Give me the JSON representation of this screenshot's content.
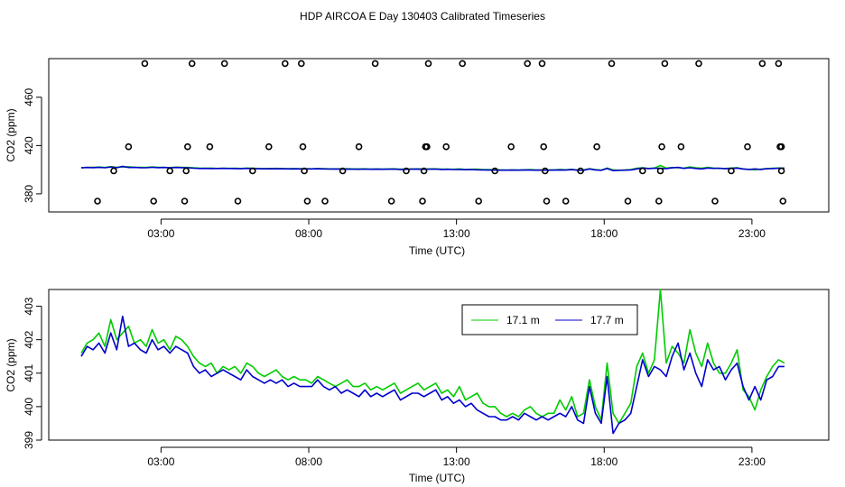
{
  "figure": {
    "title": "HDP AIRCOA E  Day 130403  Calibrated Timeseries"
  },
  "chart_data": [
    {
      "type": "scatter",
      "panel": "top",
      "title": "",
      "xlabel": "Time (UTC)",
      "ylabel": "CO2 (ppm)",
      "xlim": [
        -0.8,
        25.6
      ],
      "ylim": [
        365,
        492
      ],
      "x_ticks": [
        3,
        8,
        13,
        18,
        23
      ],
      "x_tick_labels": [
        "03:00",
        "08:00",
        "13:00",
        "18:00",
        "23:00"
      ],
      "y_ticks": [
        380,
        420,
        460
      ],
      "y_tick_labels": [
        "380",
        "420",
        "460"
      ],
      "grid": false,
      "series": [
        {
          "style": "points",
          "color": "#000000",
          "points": [
            [
              0.85,
              374
            ],
            [
              1.4,
              399
            ],
            [
              1.9,
              419
            ],
            [
              2.45,
              488
            ],
            [
              2.75,
              374
            ],
            [
              3.3,
              399
            ],
            [
              3.8,
              374
            ],
            [
              3.85,
              399
            ],
            [
              3.9,
              419
            ],
            [
              4.05,
              488
            ],
            [
              4.65,
              419
            ],
            [
              5.15,
              488
            ],
            [
              5.6,
              374
            ],
            [
              6.1,
              399
            ],
            [
              6.65,
              419
            ],
            [
              7.2,
              488
            ],
            [
              7.75,
              488
            ],
            [
              7.8,
              419
            ],
            [
              7.85,
              399
            ],
            [
              7.95,
              374
            ],
            [
              8.55,
              374
            ],
            [
              9.15,
              399
            ],
            [
              9.7,
              419
            ],
            [
              10.25,
              488
            ],
            [
              10.8,
              374
            ],
            [
              11.3,
              399
            ],
            [
              11.85,
              374
            ],
            [
              11.9,
              399
            ],
            [
              11.95,
              419
            ],
            [
              12.0,
              419
            ],
            [
              12.05,
              488
            ],
            [
              12.65,
              419
            ],
            [
              13.2,
              488
            ],
            [
              13.75,
              374
            ],
            [
              14.3,
              399
            ],
            [
              14.85,
              419
            ],
            [
              15.4,
              488
            ],
            [
              15.9,
              488
            ],
            [
              15.95,
              419
            ],
            [
              16.0,
              399
            ],
            [
              16.05,
              374
            ],
            [
              16.7,
              374
            ],
            [
              17.2,
              399
            ],
            [
              17.75,
              419
            ],
            [
              18.25,
              488
            ],
            [
              18.8,
              374
            ],
            [
              19.3,
              399
            ],
            [
              19.85,
              374
            ],
            [
              19.9,
              399
            ],
            [
              19.95,
              419
            ],
            [
              20.05,
              488
            ],
            [
              20.6,
              419
            ],
            [
              21.2,
              488
            ],
            [
              21.75,
              374
            ],
            [
              22.3,
              399
            ],
            [
              22.85,
              419
            ],
            [
              23.35,
              488
            ],
            [
              23.9,
              488
            ],
            [
              23.95,
              419
            ],
            [
              24.0,
              419
            ],
            [
              24.0,
              399
            ],
            [
              24.05,
              374
            ]
          ]
        },
        {
          "style": "line",
          "color": "#00cc00",
          "ref": "17.1 m"
        },
        {
          "style": "line",
          "color": "#0000cc",
          "ref": "17.7 m"
        }
      ]
    },
    {
      "type": "line",
      "panel": "bottom",
      "title": "",
      "xlabel": "Time (UTC)",
      "ylabel": "CO2 (ppm)",
      "xlim": [
        -0.8,
        25.6
      ],
      "ylim": [
        399.0,
        403.5
      ],
      "x_ticks": [
        3,
        8,
        13,
        18,
        23
      ],
      "x_tick_labels": [
        "03:00",
        "08:00",
        "13:00",
        "18:00",
        "23:00"
      ],
      "y_ticks": [
        399,
        400,
        401,
        402,
        403
      ],
      "y_tick_labels": [
        "399",
        "400",
        "401",
        "402",
        "403"
      ],
      "grid": false,
      "legend": {
        "position": "top-right"
      },
      "series": [
        {
          "name": "17.1 m",
          "color": "#00cc00",
          "x": [
            0.3,
            0.5,
            0.7,
            0.9,
            1.1,
            1.3,
            1.5,
            1.7,
            1.9,
            2.1,
            2.3,
            2.5,
            2.7,
            2.9,
            3.1,
            3.3,
            3.5,
            3.7,
            3.9,
            4.1,
            4.3,
            4.5,
            4.7,
            4.9,
            5.1,
            5.3,
            5.5,
            5.7,
            5.9,
            6.1,
            6.3,
            6.5,
            6.7,
            6.9,
            7.1,
            7.3,
            7.5,
            7.7,
            7.9,
            8.1,
            8.3,
            8.5,
            8.7,
            8.9,
            9.1,
            9.3,
            9.5,
            9.7,
            9.9,
            10.1,
            10.3,
            10.5,
            10.7,
            10.9,
            11.1,
            11.3,
            11.5,
            11.7,
            11.9,
            12.1,
            12.3,
            12.5,
            12.7,
            12.9,
            13.1,
            13.3,
            13.5,
            13.7,
            13.9,
            14.1,
            14.3,
            14.5,
            14.7,
            14.9,
            15.1,
            15.3,
            15.5,
            15.7,
            15.9,
            16.1,
            16.3,
            16.5,
            16.7,
            16.9,
            17.1,
            17.3,
            17.5,
            17.7,
            17.9,
            18.1,
            18.3,
            18.5,
            18.7,
            18.9,
            19.1,
            19.3,
            19.5,
            19.7,
            19.9,
            20.1,
            20.3,
            20.5,
            20.7,
            20.9,
            21.1,
            21.3,
            21.5,
            21.7,
            21.9,
            22.1,
            22.3,
            22.5,
            22.7,
            22.9,
            23.1,
            23.3,
            23.5,
            23.7,
            23.9,
            24.1
          ],
          "values": [
            401.6,
            401.9,
            402.0,
            402.2,
            401.8,
            402.6,
            402.0,
            402.2,
            402.4,
            401.9,
            402.0,
            401.8,
            402.3,
            401.9,
            402.0,
            401.7,
            402.1,
            402.0,
            401.8,
            401.5,
            401.3,
            401.2,
            401.3,
            401.0,
            401.2,
            401.1,
            401.2,
            401.0,
            401.3,
            401.2,
            401.0,
            400.9,
            401.0,
            401.1,
            400.9,
            400.8,
            400.9,
            400.8,
            400.8,
            400.7,
            400.9,
            400.8,
            400.7,
            400.6,
            400.7,
            400.8,
            400.6,
            400.6,
            400.7,
            400.5,
            400.6,
            400.5,
            400.6,
            400.7,
            400.4,
            400.5,
            400.6,
            400.7,
            400.5,
            400.6,
            400.7,
            400.4,
            400.5,
            400.3,
            400.6,
            400.2,
            400.3,
            400.4,
            400.1,
            400.0,
            400.0,
            399.8,
            399.7,
            399.8,
            399.7,
            399.9,
            400.0,
            399.8,
            399.7,
            399.8,
            399.8,
            400.2,
            399.9,
            400.3,
            399.7,
            399.8,
            400.8,
            400.0,
            399.6,
            401.3,
            399.8,
            399.5,
            399.8,
            400.1,
            401.2,
            401.6,
            401.0,
            401.4,
            403.5,
            401.3,
            401.8,
            401.6,
            401.3,
            402.3,
            401.6,
            401.2,
            401.9,
            401.3,
            401.0,
            401.0,
            401.3,
            401.7,
            400.5,
            400.3,
            399.9,
            400.5,
            400.9,
            401.2,
            401.4,
            401.3
          ]
        },
        {
          "name": "17.7 m",
          "color": "#0000cc",
          "x": [
            0.3,
            0.5,
            0.7,
            0.9,
            1.1,
            1.3,
            1.5,
            1.7,
            1.9,
            2.1,
            2.3,
            2.5,
            2.7,
            2.9,
            3.1,
            3.3,
            3.5,
            3.7,
            3.9,
            4.1,
            4.3,
            4.5,
            4.7,
            4.9,
            5.1,
            5.3,
            5.5,
            5.7,
            5.9,
            6.1,
            6.3,
            6.5,
            6.7,
            6.9,
            7.1,
            7.3,
            7.5,
            7.7,
            7.9,
            8.1,
            8.3,
            8.5,
            8.7,
            8.9,
            9.1,
            9.3,
            9.5,
            9.7,
            9.9,
            10.1,
            10.3,
            10.5,
            10.7,
            10.9,
            11.1,
            11.3,
            11.5,
            11.7,
            11.9,
            12.1,
            12.3,
            12.5,
            12.7,
            12.9,
            13.1,
            13.3,
            13.5,
            13.7,
            13.9,
            14.1,
            14.3,
            14.5,
            14.7,
            14.9,
            15.1,
            15.3,
            15.5,
            15.7,
            15.9,
            16.1,
            16.3,
            16.5,
            16.7,
            16.9,
            17.1,
            17.3,
            17.5,
            17.7,
            17.9,
            18.1,
            18.3,
            18.5,
            18.7,
            18.9,
            19.1,
            19.3,
            19.5,
            19.7,
            19.9,
            20.1,
            20.3,
            20.5,
            20.7,
            20.9,
            21.1,
            21.3,
            21.5,
            21.7,
            21.9,
            22.1,
            22.3,
            22.5,
            22.7,
            22.9,
            23.1,
            23.3,
            23.5,
            23.7,
            23.9,
            24.1
          ],
          "values": [
            401.5,
            401.8,
            401.7,
            401.9,
            401.6,
            402.2,
            401.7,
            402.7,
            401.8,
            401.9,
            401.7,
            401.6,
            402.0,
            401.7,
            401.8,
            401.6,
            401.8,
            401.7,
            401.6,
            401.2,
            401.0,
            401.1,
            400.9,
            401.0,
            401.1,
            401.0,
            400.9,
            400.8,
            401.1,
            400.9,
            400.8,
            400.7,
            400.8,
            400.7,
            400.8,
            400.6,
            400.7,
            400.6,
            400.6,
            400.6,
            400.8,
            400.6,
            400.5,
            400.6,
            400.4,
            400.5,
            400.4,
            400.3,
            400.5,
            400.3,
            400.4,
            400.3,
            400.4,
            400.5,
            400.2,
            400.3,
            400.4,
            400.4,
            400.3,
            400.4,
            400.5,
            400.2,
            400.3,
            400.1,
            400.2,
            400.0,
            400.1,
            399.9,
            399.8,
            399.7,
            399.7,
            399.6,
            399.6,
            399.7,
            399.6,
            399.8,
            399.7,
            399.6,
            399.7,
            399.6,
            399.7,
            399.8,
            399.7,
            400.0,
            399.6,
            399.5,
            400.6,
            399.8,
            399.5,
            400.9,
            399.2,
            399.5,
            399.6,
            399.8,
            400.6,
            401.4,
            400.9,
            401.2,
            401.1,
            400.9,
            401.5,
            401.9,
            401.1,
            401.6,
            401.0,
            400.6,
            401.4,
            401.1,
            401.2,
            400.8,
            401.1,
            401.3,
            400.6,
            400.2,
            400.6,
            400.2,
            400.8,
            400.9,
            401.2,
            401.2
          ]
        }
      ]
    }
  ]
}
